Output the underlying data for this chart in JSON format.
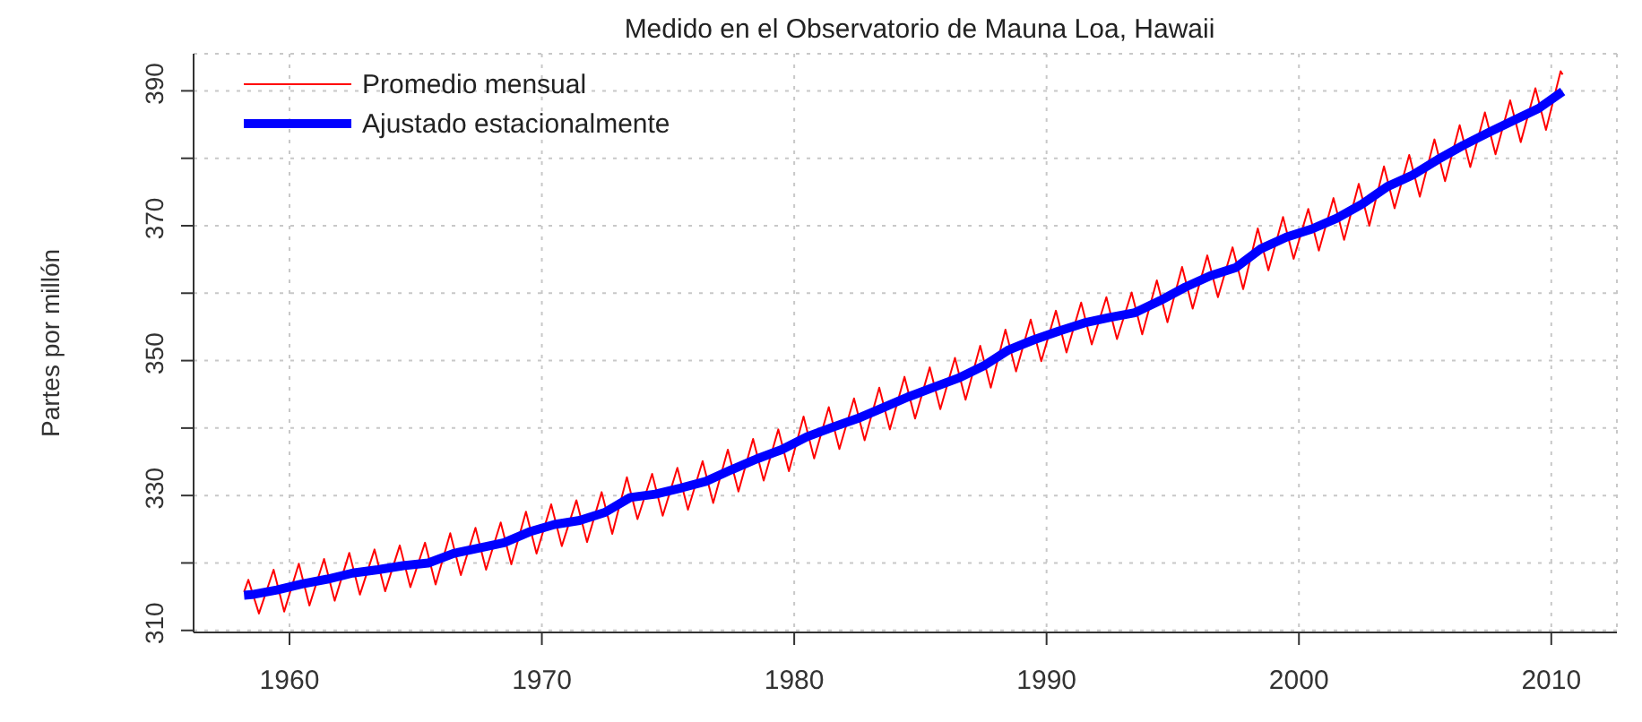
{
  "chart_data": {
    "type": "line",
    "title": "Medido en el Observatorio de Mauna Loa, Hawaii",
    "ylabel": "Partes por millón",
    "xlim": [
      1956.2,
      2012.6
    ],
    "xticks": [
      1960,
      1970,
      1980,
      1990,
      2000,
      2010
    ],
    "ylim": [
      309.7,
      395.5
    ],
    "yticks": [
      310,
      {
        "value": 320,
        "label": null
      },
      330,
      {
        "value": 340,
        "label": null
      },
      350,
      {
        "value": 360,
        "label": null
      },
      370,
      {
        "value": 380,
        "label": null
      },
      390
    ],
    "grid": true,
    "legend": "top left",
    "series": [
      {
        "name": "Promedio mensual",
        "color": "#ff0000",
        "x": [
          1958.2,
          1958.37,
          1958.79,
          1959.37,
          1959.79,
          1960.37,
          1960.79,
          1961.37,
          1961.79,
          1962.37,
          1962.79,
          1963.37,
          1963.79,
          1964.37,
          1964.79,
          1965.37,
          1965.79,
          1966.37,
          1966.79,
          1967.37,
          1967.79,
          1968.37,
          1968.79,
          1969.37,
          1969.79,
          1970.37,
          1970.79,
          1971.37,
          1971.79,
          1972.37,
          1972.79,
          1973.37,
          1973.79,
          1974.37,
          1974.79,
          1975.37,
          1975.79,
          1976.37,
          1976.79,
          1977.37,
          1977.79,
          1978.37,
          1978.79,
          1979.37,
          1979.79,
          1980.37,
          1980.79,
          1981.37,
          1981.79,
          1982.37,
          1982.79,
          1983.37,
          1983.79,
          1984.37,
          1984.79,
          1985.37,
          1985.79,
          1986.37,
          1986.79,
          1987.37,
          1987.79,
          1988.37,
          1988.79,
          1989.37,
          1989.79,
          1990.37,
          1990.79,
          1991.37,
          1991.79,
          1992.37,
          1992.79,
          1993.37,
          1993.79,
          1994.37,
          1994.79,
          1995.37,
          1995.79,
          1996.37,
          1996.79,
          1997.37,
          1997.79,
          1998.37,
          1998.79,
          1999.37,
          1999.79,
          2000.37,
          2000.79,
          2001.37,
          2001.79,
          2002.37,
          2002.79,
          2003.37,
          2003.79,
          2004.37,
          2004.79,
          2005.37,
          2005.79,
          2006.37,
          2006.79,
          2007.37,
          2007.79,
          2008.37,
          2008.79,
          2009.37,
          2009.79,
          2010.37,
          2010.45
        ],
        "values": [
          315.7,
          317.5,
          312.5,
          319.0,
          312.8,
          319.9,
          313.7,
          320.6,
          314.4,
          321.5,
          315.3,
          322.0,
          315.8,
          322.6,
          316.4,
          323.0,
          316.8,
          324.4,
          318.2,
          325.2,
          319.0,
          326.0,
          319.8,
          327.6,
          321.4,
          328.7,
          322.5,
          329.3,
          323.1,
          330.5,
          324.3,
          332.7,
          326.5,
          333.2,
          327.0,
          334.1,
          327.9,
          335.1,
          328.9,
          336.8,
          330.6,
          338.4,
          332.2,
          339.8,
          333.6,
          341.7,
          335.5,
          343.1,
          336.9,
          344.4,
          338.2,
          346.0,
          339.8,
          347.6,
          341.4,
          349.0,
          342.8,
          350.4,
          344.2,
          352.2,
          346.0,
          354.6,
          348.4,
          356.1,
          349.9,
          357.4,
          351.2,
          358.6,
          352.4,
          359.4,
          353.2,
          360.1,
          353.9,
          361.9,
          355.7,
          363.9,
          357.7,
          365.6,
          359.4,
          366.8,
          360.6,
          369.6,
          363.4,
          371.3,
          365.1,
          372.5,
          366.3,
          374.1,
          367.9,
          376.2,
          370.0,
          378.8,
          372.6,
          380.5,
          374.3,
          382.8,
          376.6,
          384.9,
          378.7,
          386.8,
          380.6,
          388.6,
          382.4,
          390.4,
          384.2,
          392.9,
          392.4
        ]
      },
      {
        "name": "Ajustado estacionalmente",
        "color": "#0000ff",
        "x": [
          1958.2,
          1958.5,
          1959.5,
          1960.5,
          1961.5,
          1962.5,
          1963.5,
          1964.5,
          1965.5,
          1966.5,
          1967.5,
          1968.5,
          1969.5,
          1970.5,
          1971.5,
          1972.5,
          1973.5,
          1974.5,
          1975.5,
          1976.5,
          1977.5,
          1978.5,
          1979.5,
          1980.5,
          1981.5,
          1982.5,
          1983.5,
          1984.5,
          1985.5,
          1986.5,
          1987.5,
          1988.5,
          1989.5,
          1990.5,
          1991.5,
          1992.5,
          1993.5,
          1994.5,
          1995.5,
          1996.5,
          1997.5,
          1998.5,
          1999.5,
          2000.5,
          2001.5,
          2002.5,
          2003.5,
          2004.5,
          2005.5,
          2006.5,
          2007.5,
          2008.5,
          2009.5,
          2010.45
        ],
        "values": [
          315.2,
          315.3,
          316.0,
          316.9,
          317.6,
          318.5,
          319.0,
          319.6,
          320.0,
          321.4,
          322.2,
          323.0,
          324.6,
          325.7,
          326.3,
          327.5,
          329.7,
          330.2,
          331.1,
          332.1,
          333.8,
          335.4,
          336.8,
          338.7,
          340.1,
          341.4,
          343.0,
          344.6,
          346.0,
          347.4,
          349.2,
          351.6,
          353.1,
          354.4,
          355.6,
          356.4,
          357.1,
          358.9,
          360.9,
          362.6,
          363.8,
          366.6,
          368.3,
          369.5,
          371.1,
          373.2,
          375.8,
          377.5,
          379.8,
          381.9,
          383.8,
          385.6,
          387.4,
          389.9
        ]
      }
    ]
  }
}
